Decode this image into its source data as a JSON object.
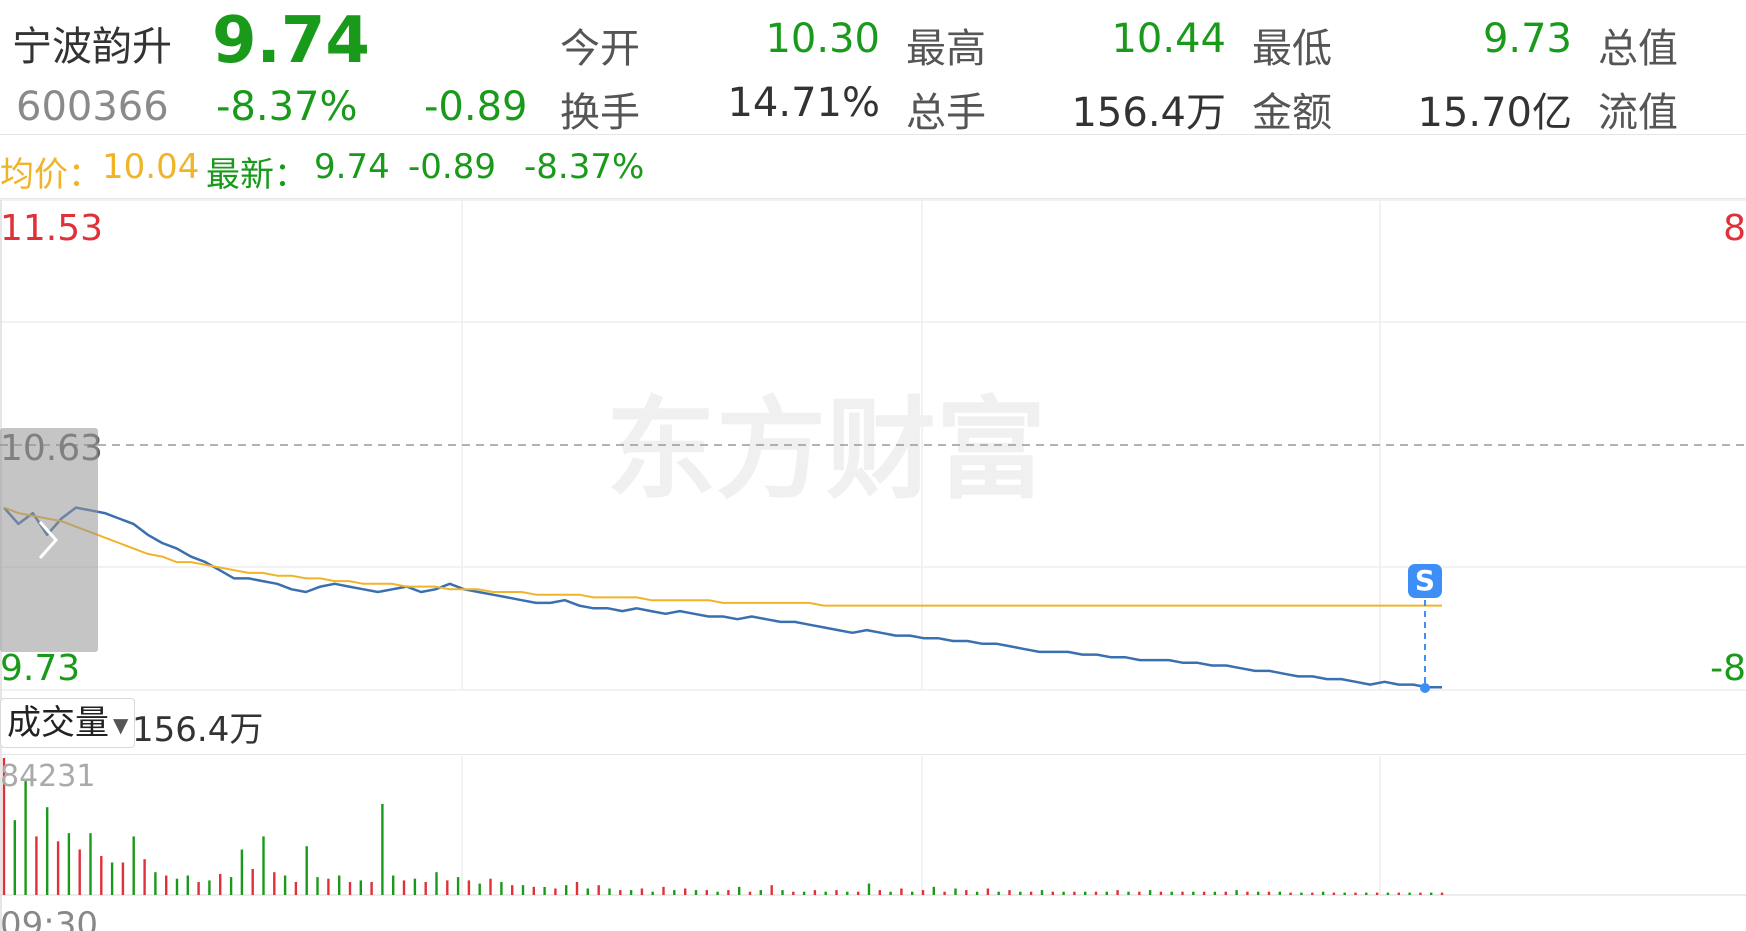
{
  "quote": {
    "name": "宁波韵升",
    "code": "600366",
    "price": "9.74",
    "change_pct": "-8.37%",
    "change": "-0.89",
    "stats": [
      {
        "label": "今开",
        "value": "10.30"
      },
      {
        "label": "最高",
        "value": "10.44"
      },
      {
        "label": "最低",
        "value": "9.73"
      },
      {
        "label": "总值",
        "value": ""
      },
      {
        "label": "换手",
        "value": "14.71%"
      },
      {
        "label": "总手",
        "value": "156.4万"
      },
      {
        "label": "金额",
        "value": "15.70亿"
      },
      {
        "label": "流值",
        "value": ""
      }
    ]
  },
  "legend": {
    "avg_label": "均价：",
    "avg_value": "10.04",
    "latest_label": "最新：",
    "latest_value": "9.74",
    "latest_change": "-0.89",
    "latest_pct": "-8.37%"
  },
  "watermark": "东方财富",
  "volume_panel": {
    "selector": "成交量",
    "total": "156.4万",
    "max_label": "84231"
  },
  "badge": "S",
  "colors": {
    "up": "#e0303a",
    "down": "#1a9a1a",
    "price_line": "#3a6fb0",
    "avg_line": "#f0b429",
    "marker": "#3d8ef7"
  },
  "chart_data": {
    "type": "line",
    "title": "",
    "ylim": [
      9.73,
      11.53
    ],
    "y_tick_labels": [
      "11.53",
      "10.63",
      "9.73"
    ],
    "right_tick_labels": [
      "8",
      "-8"
    ],
    "prev_close": 10.63,
    "x_tick_labels": [
      "09:30"
    ],
    "series": [
      {
        "name": "最新",
        "values": [
          10.4,
          10.34,
          10.38,
          10.3,
          10.36,
          10.4,
          10.39,
          10.38,
          10.36,
          10.34,
          10.3,
          10.27,
          10.25,
          10.22,
          10.2,
          10.17,
          10.14,
          10.14,
          10.13,
          10.12,
          10.1,
          10.09,
          10.11,
          10.12,
          10.11,
          10.1,
          10.09,
          10.1,
          10.11,
          10.09,
          10.1,
          10.12,
          10.1,
          10.09,
          10.08,
          10.07,
          10.06,
          10.05,
          10.05,
          10.06,
          10.04,
          10.03,
          10.03,
          10.02,
          10.03,
          10.02,
          10.01,
          10.02,
          10.01,
          10.0,
          10.0,
          9.99,
          10.0,
          9.99,
          9.98,
          9.98,
          9.97,
          9.96,
          9.95,
          9.94,
          9.95,
          9.94,
          9.93,
          9.93,
          9.92,
          9.92,
          9.91,
          9.91,
          9.9,
          9.9,
          9.89,
          9.88,
          9.87,
          9.87,
          9.87,
          9.86,
          9.86,
          9.85,
          9.85,
          9.84,
          9.84,
          9.84,
          9.83,
          9.83,
          9.82,
          9.82,
          9.81,
          9.8,
          9.8,
          9.79,
          9.78,
          9.78,
          9.77,
          9.77,
          9.76,
          9.75,
          9.76,
          9.75,
          9.75,
          9.74,
          9.74
        ]
      },
      {
        "name": "均价",
        "values": [
          10.4,
          10.38,
          10.37,
          10.36,
          10.35,
          10.33,
          10.31,
          10.29,
          10.27,
          10.25,
          10.23,
          10.22,
          10.2,
          10.2,
          10.19,
          10.18,
          10.17,
          10.16,
          10.16,
          10.15,
          10.15,
          10.14,
          10.14,
          10.13,
          10.13,
          10.12,
          10.12,
          10.12,
          10.11,
          10.11,
          10.11,
          10.1,
          10.1,
          10.1,
          10.09,
          10.09,
          10.09,
          10.08,
          10.08,
          10.08,
          10.08,
          10.07,
          10.07,
          10.07,
          10.07,
          10.06,
          10.06,
          10.06,
          10.06,
          10.06,
          10.05,
          10.05,
          10.05,
          10.05,
          10.05,
          10.05,
          10.05,
          10.04,
          10.04,
          10.04,
          10.04,
          10.04,
          10.04,
          10.04,
          10.04,
          10.04,
          10.04,
          10.04,
          10.04,
          10.04,
          10.04,
          10.04,
          10.04,
          10.04,
          10.04,
          10.04,
          10.04,
          10.04,
          10.04,
          10.04,
          10.04,
          10.04,
          10.04,
          10.04,
          10.04,
          10.04,
          10.04,
          10.04,
          10.04,
          10.04,
          10.04,
          10.04,
          10.04,
          10.04,
          10.04,
          10.04,
          10.04,
          10.04,
          10.04,
          10.04,
          10.04
        ]
      }
    ],
    "volume": {
      "ylim": [
        0,
        84231
      ],
      "values": [
        84231,
        46000,
        70000,
        36000,
        54000,
        33000,
        38000,
        28000,
        38000,
        24000,
        20000,
        20000,
        36000,
        22000,
        14000,
        12000,
        10000,
        12000,
        8000,
        9000,
        13000,
        11000,
        28000,
        16000,
        36000,
        14000,
        12000,
        8000,
        30000,
        11000,
        10000,
        12000,
        8000,
        9000,
        8000,
        56000,
        12000,
        9000,
        10000,
        8000,
        14000,
        9000,
        11000,
        9000,
        7000,
        10000,
        8000,
        6000,
        6000,
        5000,
        5000,
        4000,
        6000,
        8000,
        4000,
        6000,
        4000,
        3000,
        3000,
        4000,
        2000,
        5000,
        3000,
        4000,
        3000,
        3000,
        2000,
        3000,
        5000,
        2000,
        3000,
        6000,
        3000,
        2000,
        2000,
        3000,
        2000,
        3000,
        2000,
        2000,
        7000,
        3000,
        2000,
        4000,
        2000,
        3000,
        5000,
        2000,
        4000,
        3000,
        2000,
        4000,
        2000,
        3000,
        2000,
        2000,
        3000,
        2000,
        2000,
        2000,
        2000,
        2000,
        2000,
        3000,
        2000,
        2000,
        3000,
        2000,
        2000,
        2000,
        2000,
        2000,
        2000,
        2000,
        3000,
        2000,
        2000,
        2000,
        2000,
        1500,
        1500,
        1500,
        2000,
        1500,
        1500,
        1500,
        1500,
        1500,
        1500,
        1500,
        1500,
        1500,
        1500,
        1500
      ],
      "up": [
        true,
        false,
        false,
        true,
        false,
        true,
        false,
        true,
        false,
        true,
        false,
        true,
        false,
        true,
        false,
        true,
        false,
        false,
        true,
        false,
        true,
        false,
        false,
        true,
        false,
        true,
        false,
        true,
        false,
        false,
        true,
        false,
        true,
        false,
        true,
        false,
        false,
        true,
        false,
        true,
        false,
        true,
        false,
        true,
        false,
        true,
        false,
        true,
        false,
        true,
        false,
        true,
        false,
        true,
        false,
        true,
        false,
        true,
        false,
        true,
        false,
        true,
        false,
        true,
        false,
        true,
        false,
        true,
        false,
        true,
        false,
        true,
        false,
        true,
        false,
        true,
        false,
        true,
        false,
        true,
        false,
        true,
        false,
        true,
        false,
        true,
        false,
        true,
        false,
        true,
        false,
        true,
        false,
        true,
        false,
        true,
        false,
        true,
        false,
        true,
        false,
        true,
        false,
        true,
        false,
        true,
        false,
        true,
        false,
        true,
        false,
        true,
        false,
        true,
        false,
        true,
        false,
        true,
        false,
        true,
        false,
        true,
        false,
        true,
        false,
        true,
        false,
        true,
        false,
        true,
        false,
        true,
        false,
        true,
        false
      ]
    }
  }
}
